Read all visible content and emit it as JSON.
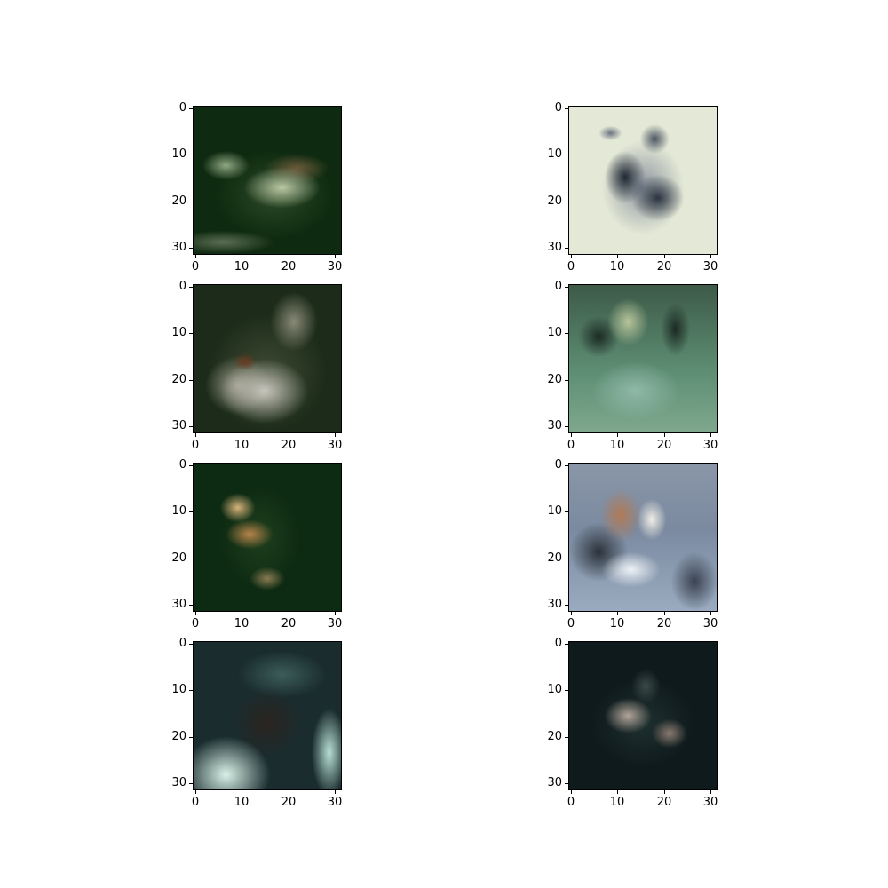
{
  "ticks": {
    "values": [
      "0",
      "10",
      "20",
      "30"
    ],
    "t0": "0",
    "t10": "10",
    "t20": "20",
    "t30": "30"
  },
  "panels": [
    {
      "id": "r1c1",
      "row": 1,
      "col": 1,
      "palette": [
        "#0e2a10",
        "#2d4a28",
        "#8fa884",
        "#b9c7a4",
        "#6b5a3a"
      ]
    },
    {
      "id": "r1c2",
      "row": 1,
      "col": 2,
      "palette": [
        "#e8ebda",
        "#d9dcc8",
        "#1e2733",
        "#4b5561",
        "#8b95a0"
      ]
    },
    {
      "id": "r2c1",
      "row": 2,
      "col": 1,
      "palette": [
        "#1d2c1a",
        "#3e4a34",
        "#9b9a8a",
        "#c9c6bd",
        "#6a3a20"
      ]
    },
    {
      "id": "r2c2",
      "row": 2,
      "col": 2,
      "palette": [
        "#1c2a24",
        "#5e8f74",
        "#8fb8a8",
        "#3d5a48",
        "#b7c49a"
      ]
    },
    {
      "id": "r3c1",
      "row": 3,
      "col": 1,
      "palette": [
        "#0d2a12",
        "#1f3f1e",
        "#b8834a",
        "#d6b27a",
        "#5a4a2a"
      ]
    },
    {
      "id": "r3c2",
      "row": 3,
      "col": 2,
      "palette": [
        "#7b8aa0",
        "#c8d4e4",
        "#b07a55",
        "#2b323a",
        "#eef2f6"
      ]
    },
    {
      "id": "r4c1",
      "row": 4,
      "col": 1,
      "palette": [
        "#1a2c2e",
        "#3c5d5a",
        "#d8f2e8",
        "#b8e0d4",
        "#2a2420"
      ]
    },
    {
      "id": "r4c2",
      "row": 4,
      "col": 2,
      "palette": [
        "#0f1a1c",
        "#1f3030",
        "#8a7a70",
        "#b3a59a",
        "#3a4a48"
      ]
    }
  ]
}
